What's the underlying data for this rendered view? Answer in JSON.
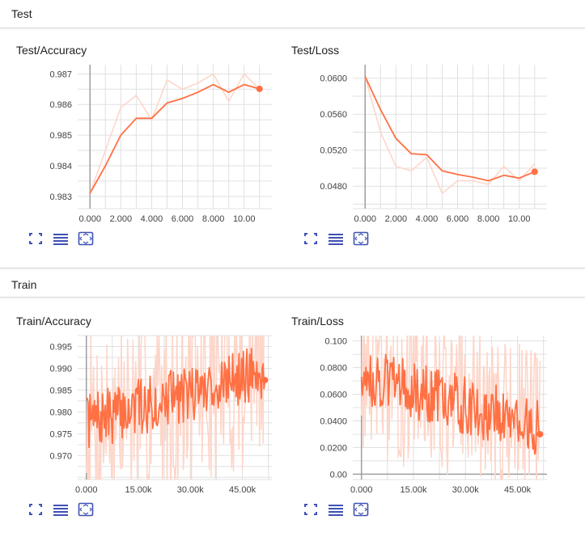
{
  "groups": [
    {
      "title": "Test"
    },
    {
      "title": "Train"
    }
  ],
  "colors": {
    "line": "#ff7043",
    "line_raw": "#fdd5c8",
    "grid": "#e0e0e0",
    "axis": "#9e9e9e",
    "icon": "#3f51b5"
  },
  "toolbar_icons": [
    "expand-icon",
    "list-icon",
    "fit-domain-icon"
  ],
  "chart_data": [
    {
      "type": "line",
      "title": "Test/Accuracy",
      "xlabel": "",
      "ylabel": "",
      "xlim": [
        -0.8,
        11.8
      ],
      "ylim": [
        0.9826,
        0.9873
      ],
      "xticks": [
        0,
        2,
        4,
        6,
        8,
        10
      ],
      "xtick_labels": [
        "0.000",
        "2.000",
        "4.000",
        "6.000",
        "8.000",
        "10.00"
      ],
      "yticks": [
        0.983,
        0.984,
        0.985,
        0.986,
        0.987
      ],
      "ytick_labels": [
        "0.983",
        "0.984",
        "0.985",
        "0.986",
        "0.987"
      ],
      "grid": true,
      "series": [
        {
          "role": "raw",
          "x": [
            0,
            1,
            2,
            3,
            4,
            5,
            6,
            7,
            8,
            9,
            10,
            11
          ],
          "values": [
            0.9831,
            0.9845,
            0.9859,
            0.9863,
            0.9855,
            0.9868,
            0.9865,
            0.9867,
            0.987,
            0.9861,
            0.987,
            0.9865
          ]
        },
        {
          "role": "smoothed",
          "x": [
            0,
            1,
            2,
            3,
            4,
            5,
            6,
            7,
            8,
            9,
            10,
            11
          ],
          "values": [
            0.9831,
            0.984,
            0.985,
            0.98555,
            0.98555,
            0.98605,
            0.9862,
            0.9864,
            0.98665,
            0.9864,
            0.98665,
            0.98651
          ]
        }
      ]
    },
    {
      "type": "line",
      "title": "Test/Loss",
      "xlabel": "",
      "ylabel": "",
      "xlim": [
        -0.8,
        11.8
      ],
      "ylim": [
        0.0455,
        0.0615
      ],
      "xticks": [
        0,
        2,
        4,
        6,
        8,
        10
      ],
      "xtick_labels": [
        "0.000",
        "2.000",
        "4.000",
        "6.000",
        "8.000",
        "10.00"
      ],
      "yticks": [
        0.048,
        0.052,
        0.056,
        0.06
      ],
      "ytick_labels": [
        "0.0480",
        "0.0520",
        "0.0560",
        "0.0600"
      ],
      "grid": true,
      "series": [
        {
          "role": "raw",
          "x": [
            0,
            1,
            2,
            3,
            4,
            5,
            6,
            7,
            8,
            9,
            10,
            11
          ],
          "values": [
            0.0602,
            0.054,
            0.0502,
            0.0497,
            0.0512,
            0.0472,
            0.0486,
            0.0486,
            0.0482,
            0.0502,
            0.0486,
            0.0505
          ]
        },
        {
          "role": "smoothed",
          "x": [
            0,
            1,
            2,
            3,
            4,
            5,
            6,
            7,
            8,
            9,
            10,
            11
          ],
          "values": [
            0.0602,
            0.0565,
            0.0533,
            0.0516,
            0.0515,
            0.0497,
            0.0493,
            0.049,
            0.0486,
            0.0492,
            0.0489,
            0.0496
          ]
        }
      ]
    },
    {
      "type": "line",
      "title": "Train/Accuracy",
      "xlabel": "",
      "ylabel": "",
      "xlim": [
        -2500,
        53500
      ],
      "ylim": [
        0.9645,
        0.9975
      ],
      "xticks": [
        0,
        15000,
        30000,
        45000
      ],
      "xtick_labels": [
        "0.000",
        "15.00k",
        "30.00k",
        "45.00k"
      ],
      "yticks": [
        0.97,
        0.975,
        0.98,
        0.985,
        0.99,
        0.995
      ],
      "ytick_labels": [
        "0.970",
        "0.975",
        "0.980",
        "0.985",
        "0.990",
        "0.995"
      ],
      "grid": true,
      "noisy": {
        "points": 200,
        "x_end": 51500,
        "trend_start": 0.9775,
        "trend_end": 0.9895,
        "raw_amp": 0.022,
        "smooth_amp": 0.0065,
        "last_value": 0.9873,
        "seed": 7
      }
    },
    {
      "type": "line",
      "title": "Train/Loss",
      "xlabel": "",
      "ylabel": "",
      "xlim": [
        -2500,
        53500
      ],
      "ylim": [
        -0.004,
        0.104
      ],
      "xticks": [
        0,
        15000,
        30000,
        45000
      ],
      "xtick_labels": [
        "0.000",
        "15.00k",
        "30.00k",
        "45.00k"
      ],
      "yticks": [
        0,
        0.02,
        0.04,
        0.06,
        0.08,
        0.1
      ],
      "ytick_labels": [
        "0.00",
        "0.0200",
        "0.0400",
        "0.0600",
        "0.0800",
        "0.100"
      ],
      "grid": true,
      "noisy": {
        "points": 200,
        "x_end": 51500,
        "trend_start": 0.075,
        "trend_end": 0.035,
        "raw_amp": 0.06,
        "smooth_amp": 0.022,
        "last_value": 0.03,
        "seed": 13
      }
    }
  ]
}
